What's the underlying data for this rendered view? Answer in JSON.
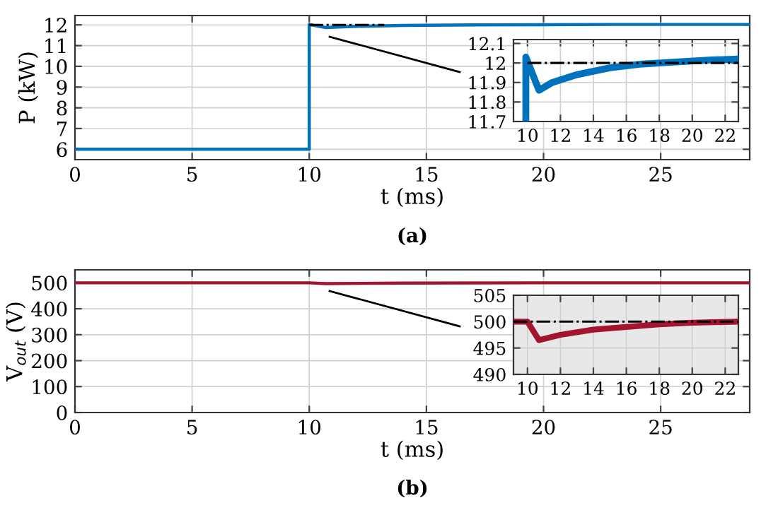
{
  "chart_data": [
    {
      "type": "line",
      "xlabel": "t (ms)",
      "ylabel": "P (kW)",
      "xlim": [
        0,
        28.8
      ],
      "xticks": [
        0,
        5,
        10,
        15,
        20,
        25
      ],
      "ylim": [
        5.5,
        12.45
      ],
      "yticks": [
        6,
        7,
        8,
        9,
        10,
        11,
        12
      ],
      "grid": true,
      "annotations": [
        "(a)"
      ],
      "series": [
        {
          "color": "#0072bd",
          "x": [
            0,
            10,
            10,
            10.7,
            12,
            14,
            17,
            20,
            23,
            28.8
          ],
          "values": [
            6,
            6,
            12.02,
            11.87,
            11.93,
            11.97,
            12,
            12.01,
            12.02,
            12.02
          ]
        },
        {
          "color": "#000000",
          "line_style": "dashdot",
          "x": [
            10,
            13.2
          ],
          "values": [
            12,
            12
          ]
        }
      ]
    },
    {
      "type": "line",
      "xlim": [
        9.15,
        22.8
      ],
      "xticks": [
        10,
        12,
        14,
        16,
        18,
        20,
        22
      ],
      "ylim": [
        11.7,
        12.12
      ],
      "yticks": [
        11.7,
        11.8,
        11.9,
        {
          "value": 12,
          "label": "12"
        },
        12.1
      ],
      "grid": true,
      "series": [
        {
          "color": "#000000",
          "line_style": "dashdot",
          "x": [
            10,
            22.8
          ],
          "values": [
            12,
            12
          ]
        },
        {
          "color": "#0072bd",
          "x": [
            9.9,
            9.9,
            10.7,
            11.5,
            13,
            15,
            17,
            19,
            21,
            22.8
          ],
          "values": [
            11.7,
            12.03,
            11.86,
            11.9,
            11.94,
            11.975,
            11.995,
            12.005,
            12.015,
            12.02
          ]
        }
      ]
    },
    {
      "type": "line",
      "xlabel": "t (ms)",
      "ylabel": "V$_{out}$ (V)",
      "xlim": [
        0,
        28.8
      ],
      "xticks": [
        0,
        5,
        10,
        15,
        20,
        25
      ],
      "ylim": [
        0,
        550
      ],
      "yticks": [
        0,
        100,
        200,
        300,
        400,
        500
      ],
      "grid": true,
      "annotations": [
        "(b)"
      ],
      "series": [
        {
          "color": "#a2142f",
          "x": [
            0,
            10,
            10.7,
            14,
            20,
            28.8
          ],
          "values": [
            500,
            500,
            497,
            499,
            500,
            500
          ]
        }
      ]
    },
    {
      "type": "line",
      "xlim": [
        9.15,
        22.8
      ],
      "xticks": [
        10,
        12,
        14,
        16,
        18,
        20,
        22
      ],
      "ylim": [
        490,
        505
      ],
      "yticks": [
        490,
        495,
        500,
        505
      ],
      "grid": true,
      "series": [
        {
          "color": "#000000",
          "line_style": "dashdot",
          "x": [
            9.15,
            22.8
          ],
          "values": [
            500,
            500
          ]
        },
        {
          "color": "#a2142f",
          "x": [
            9.15,
            10,
            10.7,
            12,
            14,
            16,
            18,
            20,
            22.8
          ],
          "values": [
            500,
            500,
            496.5,
            497.5,
            498.5,
            499,
            499.5,
            499.8,
            500
          ]
        }
      ]
    }
  ]
}
